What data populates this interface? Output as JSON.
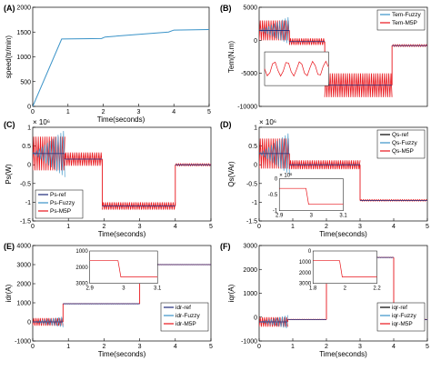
{
  "figure": {
    "panel_letters": [
      "(A)",
      "(B)",
      "(C)",
      "(D)",
      "(E)",
      "(F)"
    ]
  },
  "colors": {
    "ref": "#1f2a7a",
    "fuzzy": "#3a93c8",
    "m5p": "#e8141a",
    "black": "#000000"
  },
  "chart_data": [
    {
      "type": "line",
      "panel": "(A)",
      "xlabel": "Time(seconds)",
      "ylabel": "speed(tr/min)",
      "xlim": [
        0,
        5
      ],
      "ylim": [
        0,
        2000
      ],
      "xticks": [
        "0",
        "1",
        "2",
        "3",
        "4",
        "5"
      ],
      "yticks": [
        "0",
        "500",
        "1000",
        "1500",
        "2000"
      ],
      "series": [
        {
          "color_key": "fuzzy",
          "x": [
            0,
            0.82,
            1.95,
            2.05,
            3.85,
            4.0,
            5.0
          ],
          "values": [
            0,
            1360,
            1370,
            1400,
            1500,
            1540,
            1550
          ]
        }
      ]
    },
    {
      "type": "line",
      "panel": "(B)",
      "xlabel": "",
      "ylabel": "Tem(N.m)",
      "xlim": [
        0,
        5
      ],
      "ylim": [
        -10000,
        5000
      ],
      "xticks": [],
      "yticks": [
        "-10000",
        "-5000",
        "0",
        "5000"
      ],
      "legend": [
        {
          "name": "Tem-Fuzzy",
          "color_key": "fuzzy"
        },
        {
          "name": "Tem-M5P",
          "color_key": "m5p"
        }
      ],
      "legend_position": "top-right",
      "segments": [
        {
          "x0": 0,
          "x1": 0.9,
          "value": 1500,
          "band": 1500
        },
        {
          "x0": 0.9,
          "x1": 1.95,
          "value": -200,
          "band": 500
        },
        {
          "x0": 1.95,
          "x1": 3.95,
          "value": -6800,
          "band": 1800
        },
        {
          "x0": 3.95,
          "x1": 5,
          "value": -800,
          "band": 150
        }
      ],
      "inset": {
        "note": "zoom showing ripple",
        "xlim": [
          0,
          1
        ],
        "ylim": [
          -1,
          1
        ]
      }
    },
    {
      "type": "line",
      "panel": "(C)",
      "xlabel": "Time(seconds)",
      "ylabel": "Ps(W)",
      "multiplier": "× 10⁶",
      "xlim": [
        0,
        5
      ],
      "ylim": [
        -1.5,
        1
      ],
      "xticks": [
        "0",
        "1",
        "2",
        "3",
        "4",
        "5"
      ],
      "yticks": [
        "-1.5",
        "-1",
        "-0.5",
        "0",
        "0.5",
        "1"
      ],
      "legend": [
        {
          "name": "Ps-ref",
          "color_key": "ref"
        },
        {
          "name": "Ps-Fuzzy",
          "color_key": "fuzzy"
        },
        {
          "name": "Ps-M5P",
          "color_key": "m5p"
        }
      ],
      "legend_position": "bottom-left",
      "segments": [
        {
          "x0": 0,
          "x1": 0.9,
          "value": 0.3,
          "band": 0.45
        },
        {
          "x0": 0.9,
          "x1": 1.95,
          "value": 0.15,
          "band": 0.18
        },
        {
          "x0": 1.95,
          "x1": 4.0,
          "value": -1.1,
          "band": 0.1
        },
        {
          "x0": 4.0,
          "x1": 5,
          "value": 0,
          "band": 0.03
        }
      ]
    },
    {
      "type": "line",
      "panel": "(D)",
      "xlabel": "Time(seconds)",
      "ylabel": "Qs(VAr)",
      "multiplier": "× 10⁶",
      "xlim": [
        0,
        5
      ],
      "ylim": [
        -1.5,
        1
      ],
      "xticks": [
        "0",
        "1",
        "2",
        "3",
        "4",
        "5"
      ],
      "yticks": [
        "-1.5",
        "-1",
        "-0.5",
        "0",
        "0.5",
        "1"
      ],
      "legend": [
        {
          "name": "Qs-ref",
          "color_key": "black"
        },
        {
          "name": "Qs-Fuzzy",
          "color_key": "fuzzy"
        },
        {
          "name": "Qs-M5P",
          "color_key": "m5p"
        }
      ],
      "legend_position": "top-right",
      "segments": [
        {
          "x0": 0,
          "x1": 0.9,
          "value": 0.3,
          "band": 0.4
        },
        {
          "x0": 0.9,
          "x1": 3.0,
          "value": 0.0,
          "band": 0.12
        },
        {
          "x0": 3.0,
          "x1": 5,
          "value": -0.95,
          "band": 0.02
        }
      ],
      "inset": {
        "multiplier": "× 10⁶",
        "xticks": [
          "2.9",
          "3",
          "3.1"
        ],
        "yticks": [
          "0",
          "-0.5",
          "-1"
        ]
      }
    },
    {
      "type": "line",
      "panel": "(E)",
      "xlabel": "Time(seconds)",
      "ylabel": "idr(A)",
      "xlim": [
        0,
        5
      ],
      "ylim": [
        -1000,
        4000
      ],
      "xticks": [
        "0",
        "1",
        "2",
        "3",
        "4",
        "5"
      ],
      "yticks": [
        "-1000",
        "0",
        "1000",
        "2000",
        "3000",
        "4000"
      ],
      "legend": [
        {
          "name": "idr-ref",
          "color_key": "ref"
        },
        {
          "name": "idr-Fuzzy",
          "color_key": "fuzzy"
        },
        {
          "name": "idr-M5P",
          "color_key": "m5p"
        }
      ],
      "legend_position": "right",
      "segments": [
        {
          "x0": 0,
          "x1": 0.85,
          "value": 0,
          "band": 200
        },
        {
          "x0": 0.85,
          "x1": 3.0,
          "value": 950,
          "band": 10
        },
        {
          "x0": 3.0,
          "x1": 5,
          "value": 3000,
          "band": 10
        }
      ],
      "inset": {
        "xticks": [
          "2.9",
          "3",
          "3.1"
        ],
        "yticks": [
          "1000",
          "2000",
          "3000"
        ]
      }
    },
    {
      "type": "line",
      "panel": "(F)",
      "xlabel": "Time(seconds)",
      "ylabel": "iqr(A)",
      "xlim": [
        0,
        5
      ],
      "ylim": [
        -1000,
        3000
      ],
      "xticks": [
        "0",
        "1",
        "2",
        "3",
        "4",
        "5"
      ],
      "yticks": [
        "-1000",
        "0",
        "1000",
        "2000",
        "3000"
      ],
      "legend": [
        {
          "name": "iqr-ref",
          "color_key": "black"
        },
        {
          "name": "iqr-Fuzzy",
          "color_key": "fuzzy"
        },
        {
          "name": "iqr-M5P",
          "color_key": "m5p"
        }
      ],
      "legend_position": "right",
      "segments": [
        {
          "x0": 0,
          "x1": 0.85,
          "value": -200,
          "band": 200
        },
        {
          "x0": 0.85,
          "x1": 2.0,
          "value": -100,
          "band": 10
        },
        {
          "x0": 2.0,
          "x1": 4.0,
          "value": 2500,
          "band": 10
        },
        {
          "x0": 4.0,
          "x1": 5,
          "value": -100,
          "band": 10
        }
      ],
      "inset": {
        "xticks": [
          "1.8",
          "2",
          "2.2"
        ],
        "yticks": [
          "0",
          "1000",
          "2000",
          "3000"
        ]
      }
    }
  ]
}
